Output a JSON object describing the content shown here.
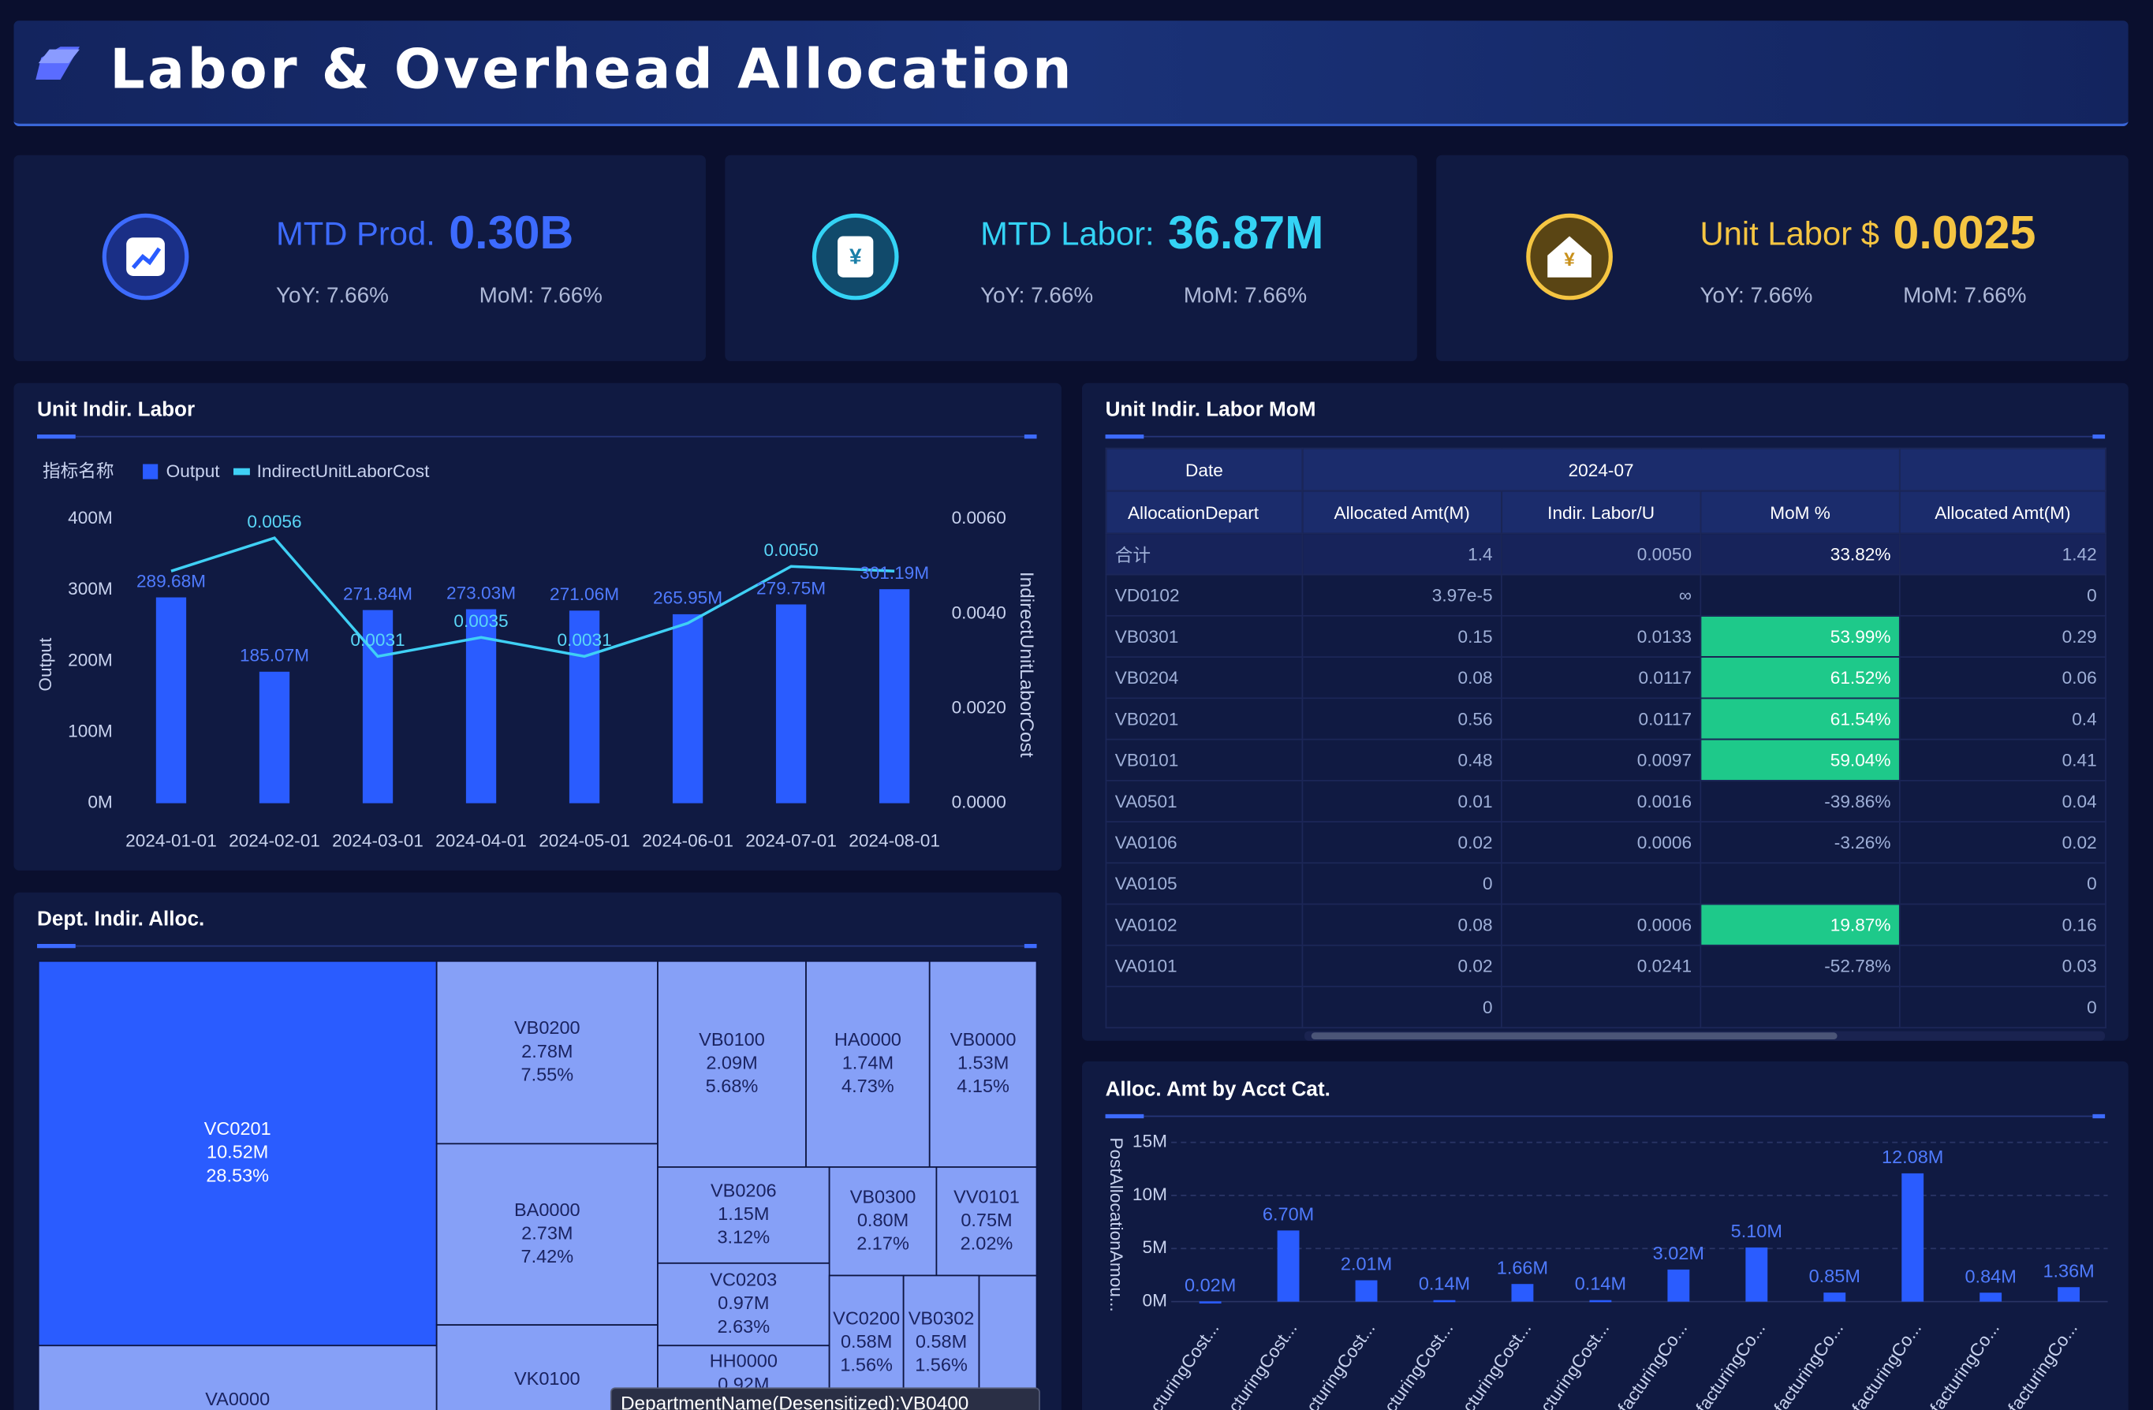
{
  "header": {
    "title": "Labor & Overhead Allocation"
  },
  "kpis": [
    {
      "label": "MTD Prod.",
      "value": "0.30B",
      "yoy": "YoY: 7.66%",
      "mom": "MoM: 7.66%"
    },
    {
      "label": "MTD Labor:",
      "value": "36.87M",
      "yoy": "YoY:  7.66%",
      "mom": "MoM: 7.66%"
    },
    {
      "label": "Unit Labor $",
      "value": "0.0025",
      "yoy": "YoY: 7.66%",
      "mom": "MoM: 7.66%"
    }
  ],
  "chart_data": [
    {
      "type": "combo",
      "title": "Unit Indir. Labor",
      "legend_title": "指标名称",
      "categories": [
        "2024-01-01",
        "2024-02-01",
        "2024-03-01",
        "2024-04-01",
        "2024-05-01",
        "2024-06-01",
        "2024-07-01",
        "2024-08-01"
      ],
      "ylabel": "Output",
      "y2label": "IndirectUnitLaborCost",
      "ylim": [
        0,
        400
      ],
      "yticks": [
        {
          "value": 0,
          "label": "0M"
        },
        {
          "value": 100,
          "label": "100M"
        },
        {
          "value": 200,
          "label": "200M"
        },
        {
          "value": 300,
          "label": "300M"
        },
        {
          "value": 400,
          "label": "400M"
        }
      ],
      "y2lim": [
        0,
        0.006
      ],
      "y2ticks": [
        {
          "value": 0,
          "label": "0.0000"
        },
        {
          "value": 0.002,
          "label": "0.0020"
        },
        {
          "value": 0.004,
          "label": "0.0040"
        },
        {
          "value": 0.006,
          "label": "0.0060"
        }
      ],
      "series": [
        {
          "name": "Output",
          "kind": "bar",
          "color": "#2a5cff",
          "values": [
            289.68,
            185.07,
            271.84,
            273.03,
            271.06,
            265.95,
            279.75,
            301.19
          ],
          "value_labels": [
            "289.68M",
            "185.07M",
            "271.84M",
            "273.03M",
            "271.06M",
            "265.95M",
            "279.75M",
            "301.19M"
          ]
        },
        {
          "name": "IndirectUnitLaborCost",
          "kind": "line",
          "axis": "y2",
          "color": "#3fd0f5",
          "values": [
            0.0049,
            0.0056,
            0.0031,
            0.0035,
            0.0031,
            0.0038,
            0.005,
            0.0049
          ],
          "value_labels": [
            null,
            "0.0056",
            "0.0031",
            "0.0035",
            "0.0031",
            null,
            "0.0050",
            null
          ]
        }
      ]
    },
    {
      "type": "treemap",
      "title": "Dept. Indir. Alloc.",
      "items": [
        {
          "name": "VC0201",
          "value": 10.52,
          "value_label": "10.52M",
          "share_label": "28.53%"
        },
        {
          "name": "VA0000"
        },
        {
          "name": "VB0200",
          "value": 2.78,
          "value_label": "2.78M",
          "share_label": "7.55%"
        },
        {
          "name": "BA0000",
          "value": 2.73,
          "value_label": "2.73M",
          "share_label": "7.42%"
        },
        {
          "name": "VK0100"
        },
        {
          "name": "VB0100",
          "value": 2.09,
          "value_label": "2.09M",
          "share_label": "5.68%"
        },
        {
          "name": "HA0000",
          "value": 1.74,
          "value_label": "1.74M",
          "share_label": "4.73%"
        },
        {
          "name": "VB0000",
          "value": 1.53,
          "value_label": "1.53M",
          "share_label": "4.15%"
        },
        {
          "name": "VB0206",
          "value": 1.15,
          "value_label": "1.15M",
          "share_label": "3.12%"
        },
        {
          "name": "VB0300",
          "value": 0.8,
          "value_label": "0.80M",
          "share_label": "2.17%"
        },
        {
          "name": "VV0101",
          "value": 0.75,
          "value_label": "0.75M",
          "share_label": "2.02%"
        },
        {
          "name": "VC0203",
          "value": 0.97,
          "value_label": "0.97M",
          "share_label": "2.63%"
        },
        {
          "name": "HH0000",
          "value": 0.92,
          "value_label": "0.92M"
        },
        {
          "name": "VC0200",
          "value": 0.58,
          "value_label": "0.58M",
          "share_label": "1.56%"
        },
        {
          "name": "VB0302",
          "value": 0.58,
          "value_label": "0.58M",
          "share_label": "1.56%"
        }
      ],
      "tooltip": "DepartmentName(Desensitized):VB0400"
    },
    {
      "type": "bar",
      "title": "Alloc. Amt by Acct Cat.",
      "ylabel": "PostAllocationAmou...",
      "categories": [
        "ufacturingCost...",
        "ufacturingCost...",
        "ufacturingCost...",
        "ufacturingCost...",
        "ufacturingCost...",
        "ufacturingCost...",
        "ufacturingCo...",
        "ufacturingCo...",
        "ufacturingCo...",
        "ufacturingCo...",
        "ufacturingCo...",
        "ufacturingCo..."
      ],
      "values": [
        0.02,
        6.7,
        2.01,
        0.14,
        1.66,
        0.14,
        3.02,
        5.1,
        0.85,
        12.08,
        0.84,
        1.36
      ],
      "value_labels": [
        "0.02M",
        "6.70M",
        "2.01M",
        "0.14M",
        "1.66M",
        "0.14M",
        "3.02M",
        "5.10M",
        "0.85M",
        "12.08M",
        "0.84M",
        "1.36M"
      ],
      "color": "#2a5cff",
      "ylim": [
        0,
        15
      ],
      "yticks": [
        {
          "value": 0,
          "label": "0M"
        },
        {
          "value": 5,
          "label": "5M"
        },
        {
          "value": 10,
          "label": "10M"
        },
        {
          "value": 15,
          "label": "15M"
        }
      ],
      "grid": true
    }
  ],
  "table": {
    "title": "Unit Indir. Labor MoM",
    "header_top": [
      "Date",
      "2024-07"
    ],
    "columns": [
      "AllocationDepart",
      "Allocated Amt(M)",
      "Indir. Labor/U",
      "MoM %",
      "Allocated Amt(M)"
    ],
    "rows": [
      [
        "合计",
        "1.4",
        "0.0050",
        "33.82%",
        "1.42"
      ],
      [
        "VD0102",
        "3.97e-5",
        "∞",
        null,
        "0"
      ],
      [
        "VB0301",
        "0.15",
        "0.0133",
        "53.99%",
        "0.29"
      ],
      [
        "VB0204",
        "0.08",
        "0.0117",
        "61.52%",
        "0.06"
      ],
      [
        "VB0201",
        "0.56",
        "0.0117",
        "61.54%",
        "0.4"
      ],
      [
        "VB0101",
        "0.48",
        "0.0097",
        "59.04%",
        "0.41"
      ],
      [
        "VA0501",
        "0.01",
        "0.0016",
        "-39.86%",
        "0.04"
      ],
      [
        "VA0106",
        "0.02",
        "0.0006",
        "-3.26%",
        "0.02"
      ],
      [
        "VA0105",
        "0",
        null,
        null,
        "0"
      ],
      [
        "VA0102",
        "0.08",
        "0.0006",
        "19.87%",
        "0.16"
      ],
      [
        "VA0101",
        "0.02",
        "0.0241",
        "-52.78%",
        "0.03"
      ],
      [
        null,
        "0",
        null,
        null,
        "0"
      ]
    ]
  }
}
